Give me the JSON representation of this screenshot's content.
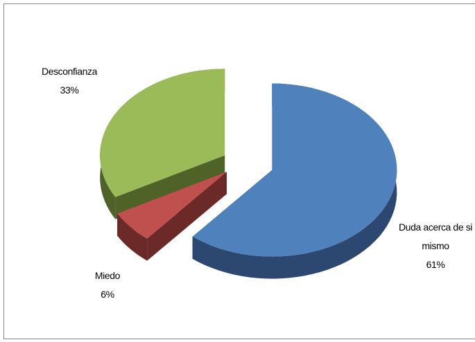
{
  "chart_data": {
    "type": "pie3d",
    "categories": [
      "Duda acerca de si mismo",
      "Miedo",
      "Desconfianza"
    ],
    "values": [
      61,
      6,
      33
    ],
    "value_labels": [
      "61%",
      "6%",
      "33%"
    ],
    "colors": [
      "#4F81BD",
      "#C0504D",
      "#9BBB59"
    ],
    "side_colors": [
      "#2C4770",
      "#6B2A28",
      "#4F6228"
    ]
  }
}
